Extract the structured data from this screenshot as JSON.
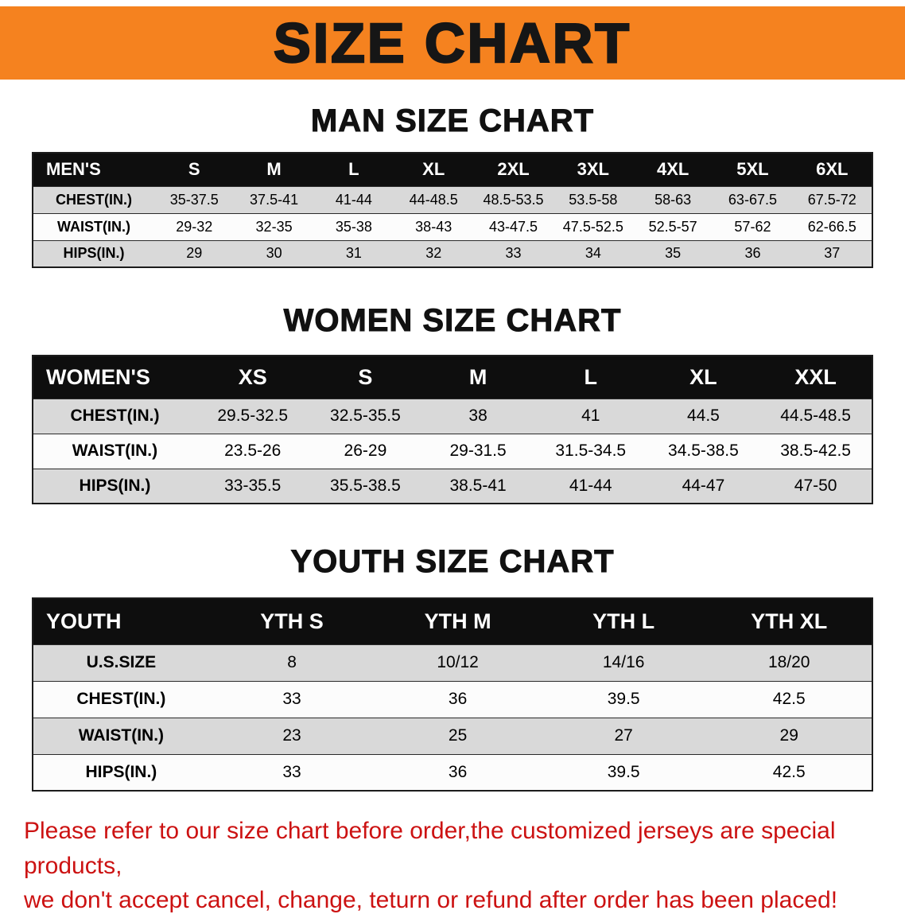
{
  "banner": {
    "title": "SIZE CHART"
  },
  "tables": {
    "men": {
      "heading": "MAN SIZE CHART",
      "header": [
        "MEN'S",
        "S",
        "M",
        "L",
        "XL",
        "2XL",
        "3XL",
        "4XL",
        "5XL",
        "6XL"
      ],
      "rows": [
        [
          "CHEST(IN.)",
          "35-37.5",
          "37.5-41",
          "41-44",
          "44-48.5",
          "48.5-53.5",
          "53.5-58",
          "58-63",
          "63-67.5",
          "67.5-72"
        ],
        [
          "WAIST(IN.)",
          "29-32",
          "32-35",
          "35-38",
          "38-43",
          "43-47.5",
          "47.5-52.5",
          "52.5-57",
          "57-62",
          "62-66.5"
        ],
        [
          "HIPS(IN.)",
          "29",
          "30",
          "31",
          "32",
          "33",
          "34",
          "35",
          "36",
          "37"
        ]
      ]
    },
    "women": {
      "heading": "WOMEN SIZE CHART",
      "header": [
        "WOMEN'S",
        "XS",
        "S",
        "M",
        "L",
        "XL",
        "XXL"
      ],
      "rows": [
        [
          "CHEST(IN.)",
          "29.5-32.5",
          "32.5-35.5",
          "38",
          "41",
          "44.5",
          "44.5-48.5"
        ],
        [
          "WAIST(IN.)",
          "23.5-26",
          "26-29",
          "29-31.5",
          "31.5-34.5",
          "34.5-38.5",
          "38.5-42.5"
        ],
        [
          "HIPS(IN.)",
          "33-35.5",
          "35.5-38.5",
          "38.5-41",
          "41-44",
          "44-47",
          "47-50"
        ]
      ]
    },
    "youth": {
      "heading": "YOUTH SIZE CHART",
      "header": [
        "YOUTH",
        "YTH S",
        "YTH M",
        "YTH L",
        "YTH XL"
      ],
      "rows": [
        [
          "U.S.SIZE",
          "8",
          "10/12",
          "14/16",
          "18/20"
        ],
        [
          "CHEST(IN.)",
          "33",
          "36",
          "39.5",
          "42.5"
        ],
        [
          "WAIST(IN.)",
          "23",
          "25",
          "27",
          "29"
        ],
        [
          "HIPS(IN.)",
          "33",
          "36",
          "39.5",
          "42.5"
        ]
      ]
    }
  },
  "footer": {
    "line1": "Please refer to our size chart before order,the customized jerseys are special products,",
    "line2": "we don't accept cancel, change, teturn or refund after order has been placed!"
  },
  "colors": {
    "banner_bg": "#f5821f",
    "banner_text": "#161616",
    "header_bg": "#0e0e0e",
    "header_text": "#ffffff",
    "row_shaded": "#d9d9d9",
    "row_plain": "#fcfcfc",
    "notice_red": "#cc1212",
    "border_dark": "#1c1c1c"
  }
}
